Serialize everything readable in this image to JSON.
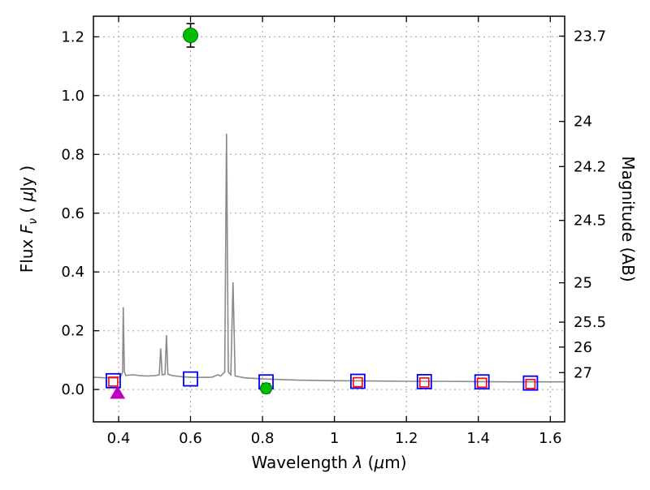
{
  "chart_data": {
    "type": "line",
    "title": "",
    "xlabel_parts": [
      "Wavelength  ",
      "λ",
      " (",
      "μ",
      "m)"
    ],
    "ylabel_parts": [
      "Flux  ",
      "F",
      "ν",
      "  ( ",
      "μ",
      "Jy )"
    ],
    "y2label": "Magnitude (AB)",
    "xlim": [
      0.33,
      1.64
    ],
    "ylim": [
      -0.11,
      1.27
    ],
    "xticks": [
      0.4,
      0.6,
      0.8,
      1.0,
      1.2,
      1.4,
      1.6
    ],
    "xtick_labels": [
      "0.4",
      "0.6",
      "0.8",
      "1",
      "1.2",
      "1.4",
      "1.6"
    ],
    "yticks": [
      0.0,
      0.2,
      0.4,
      0.6,
      0.8,
      1.0,
      1.2
    ],
    "ytick_labels": [
      "0.0",
      "0.2",
      "0.4",
      "0.6",
      "0.8",
      "1.0",
      "1.2"
    ],
    "y2_ab_zeropoint": 23.9,
    "y2ticks": [
      23.7,
      24,
      24.2,
      24.5,
      25,
      25.5,
      26,
      27
    ],
    "y2tick_labels": [
      "23.7",
      "24",
      "24.2",
      "24.5",
      "25",
      "25.5",
      "26",
      "27"
    ],
    "grid": true,
    "colors": {
      "spectrum": "#8a8a8a",
      "observed": "#00bf00",
      "observed_edge": "#007200",
      "errorbar": "#000000",
      "model_band_blue": "#0000ff",
      "model_band_red": "#ff0000",
      "upper_limit": "#bf00bf",
      "grid": "#9e9e9e",
      "frame": "#000000"
    },
    "spectrum_points": [
      [
        0.33,
        0.042
      ],
      [
        0.36,
        0.04
      ],
      [
        0.39,
        0.039
      ],
      [
        0.405,
        0.042
      ],
      [
        0.411,
        0.06
      ],
      [
        0.413,
        0.28
      ],
      [
        0.416,
        0.06
      ],
      [
        0.42,
        0.048
      ],
      [
        0.44,
        0.05
      ],
      [
        0.46,
        0.047
      ],
      [
        0.48,
        0.046
      ],
      [
        0.5,
        0.047
      ],
      [
        0.513,
        0.05
      ],
      [
        0.517,
        0.14
      ],
      [
        0.521,
        0.05
      ],
      [
        0.529,
        0.052
      ],
      [
        0.533,
        0.185
      ],
      [
        0.537,
        0.052
      ],
      [
        0.55,
        0.047
      ],
      [
        0.58,
        0.043
      ],
      [
        0.62,
        0.041
      ],
      [
        0.66,
        0.042
      ],
      [
        0.676,
        0.05
      ],
      [
        0.684,
        0.046
      ],
      [
        0.695,
        0.06
      ],
      [
        0.7,
        0.87
      ],
      [
        0.705,
        0.06
      ],
      [
        0.712,
        0.05
      ],
      [
        0.718,
        0.365
      ],
      [
        0.724,
        0.046
      ],
      [
        0.75,
        0.04
      ],
      [
        0.8,
        0.036
      ],
      [
        0.85,
        0.034
      ],
      [
        0.9,
        0.032
      ],
      [
        0.95,
        0.031
      ],
      [
        1.0,
        0.03
      ],
      [
        1.1,
        0.029
      ],
      [
        1.2,
        0.028
      ],
      [
        1.3,
        0.028
      ],
      [
        1.4,
        0.027
      ],
      [
        1.5,
        0.026
      ],
      [
        1.6,
        0.026
      ],
      [
        1.64,
        0.026
      ]
    ],
    "observed_points": [
      {
        "x": 0.6,
        "y": 1.205,
        "yerr": 0.04,
        "r": 9
      },
      {
        "x": 0.81,
        "y": 0.004,
        "yerr": 0.016,
        "r": 7
      }
    ],
    "upper_limit_points": [
      {
        "x": 0.397,
        "y": -0.012
      }
    ],
    "model_squares_blue": [
      [
        0.385,
        0.03
      ],
      [
        0.6,
        0.036
      ],
      [
        0.81,
        0.026
      ],
      [
        1.065,
        0.028
      ],
      [
        1.25,
        0.027
      ],
      [
        1.41,
        0.026
      ],
      [
        1.545,
        0.022
      ]
    ],
    "model_squares_red": [
      [
        0.385,
        0.027
      ],
      [
        1.065,
        0.025
      ],
      [
        1.25,
        0.024
      ],
      [
        1.41,
        0.023
      ],
      [
        1.545,
        0.019
      ]
    ]
  }
}
